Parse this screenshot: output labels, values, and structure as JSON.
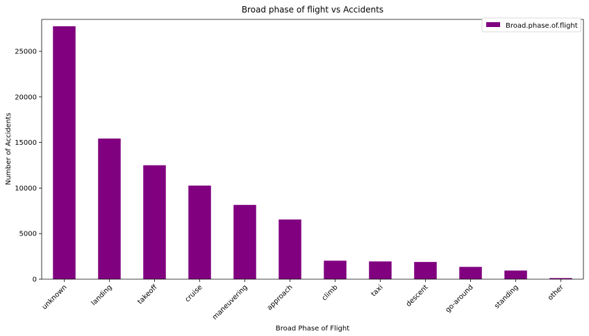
{
  "chart_data": {
    "type": "bar",
    "title": "Broad phase of flight vs Accidents",
    "xlabel": "Broad Phase of Flight",
    "ylabel": "Number of Accidents",
    "categories": [
      "unknown",
      "landing",
      "takeoff",
      "cruise",
      "maneuvering",
      "approach",
      "climb",
      "taxi",
      "descent",
      "go-around",
      "standing",
      "other"
    ],
    "series": [
      {
        "name": "Broad.phase.of.flight",
        "color": "#800080",
        "values": [
          27750,
          15430,
          12500,
          10270,
          8150,
          6550,
          2030,
          1950,
          1890,
          1350,
          950,
          120
        ]
      }
    ],
    "ylim": [
      0,
      28500
    ],
    "yticks": [
      0,
      5000,
      10000,
      15000,
      20000,
      25000
    ],
    "xtick_rotation": 45,
    "legend": "top-right",
    "grid": false
  }
}
